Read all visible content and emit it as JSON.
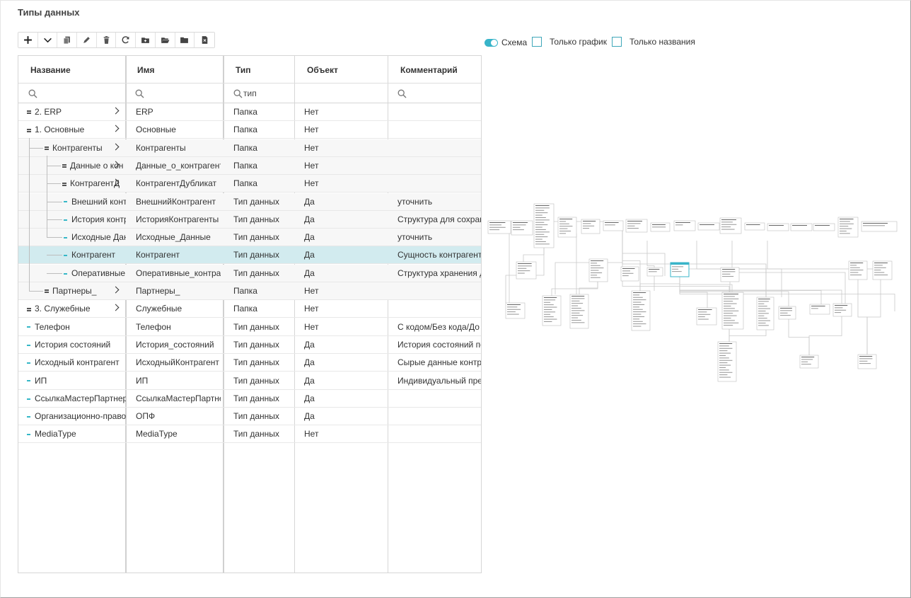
{
  "page": {
    "title": "Типы данных"
  },
  "toolbar": {
    "buttons": [
      {
        "name": "add-button",
        "icon": "plus-icon"
      },
      {
        "name": "dropdown-button",
        "icon": "chevron-down-icon"
      },
      {
        "name": "copy-button",
        "icon": "copy-icon"
      },
      {
        "name": "edit-button",
        "icon": "pencil-icon"
      },
      {
        "name": "delete-button",
        "icon": "trash-icon"
      },
      {
        "name": "refresh-button",
        "icon": "refresh-icon"
      },
      {
        "name": "add-folder-button",
        "icon": "folder-plus-icon"
      },
      {
        "name": "open-folder-button",
        "icon": "folder-open-icon"
      },
      {
        "name": "folder-button",
        "icon": "folder-icon"
      },
      {
        "name": "export-button",
        "icon": "file-export-icon"
      }
    ]
  },
  "view_options": {
    "schema_label": "Схема",
    "schema_on": true,
    "graph_only_label": "Только график",
    "graph_only_checked": false,
    "names_only_label": "Только названия",
    "names_only_checked": false
  },
  "grid": {
    "columns": [
      {
        "key": "name",
        "label": "Название"
      },
      {
        "key": "ident",
        "label": "Имя"
      },
      {
        "key": "type",
        "label": "Тип"
      },
      {
        "key": "object",
        "label": "Объект"
      },
      {
        "key": "comment",
        "label": "Комментарий"
      }
    ],
    "filters": {
      "name": "",
      "ident": "",
      "type": "тип",
      "comment": ""
    },
    "rows": [
      {
        "name": "2. ERP",
        "ident": "ERP",
        "type": "Папка",
        "object": "Нет",
        "comment": "",
        "kind": "folder",
        "level": 0,
        "expand": true
      },
      {
        "name": "1. Основные",
        "ident": "Основные",
        "type": "Папка",
        "object": "Нет",
        "comment": "",
        "kind": "folder",
        "level": 0,
        "expand": true
      },
      {
        "name": "Контрагенты",
        "ident": "Контрагенты",
        "type": "Папка",
        "object": "Нет",
        "comment": "",
        "kind": "folder",
        "level": 1,
        "expand": true
      },
      {
        "name": "Данные о кон",
        "ident": "Данные_о_контрагента",
        "type": "Папка",
        "object": "Нет",
        "comment": "",
        "kind": "folder",
        "level": 2,
        "expand": true
      },
      {
        "name": "КонтрагентД",
        "ident": "КонтрагентДубликат",
        "type": "Папка",
        "object": "Нет",
        "comment": "",
        "kind": "folder",
        "level": 2,
        "expand": true
      },
      {
        "name": "Внешний конт",
        "ident": "ВнешнийКонтрагент",
        "type": "Тип данных",
        "object": "Да",
        "comment": "уточнить",
        "kind": "type",
        "level": 2
      },
      {
        "name": "История контр",
        "ident": "ИсторияКонтрагенты",
        "type": "Тип данных",
        "object": "Да",
        "comment": "Структура для сохран",
        "kind": "type",
        "level": 2
      },
      {
        "name": "Исходные Дан",
        "ident": "Исходные_Данные",
        "type": "Тип данных",
        "object": "Да",
        "comment": "уточнить",
        "kind": "type",
        "level": 2
      },
      {
        "name": "Контрагент",
        "ident": "Контрагент",
        "type": "Тип данных",
        "object": "Да",
        "comment": "Сущность контрагент",
        "kind": "type",
        "level": 2,
        "selected": true
      },
      {
        "name": "Оперативные",
        "ident": "Оперативные_контраге",
        "type": "Тип данных",
        "object": "Да",
        "comment": "Структура хранения д",
        "kind": "type",
        "level": 2
      },
      {
        "name": "Партнеры_",
        "ident": "Партнеры_",
        "type": "Папка",
        "object": "Нет",
        "comment": "",
        "kind": "folder",
        "level": 1,
        "expand": true
      },
      {
        "name": "3. Служебные",
        "ident": "Служебные",
        "type": "Папка",
        "object": "Нет",
        "comment": "",
        "kind": "folder",
        "level": 0,
        "expand": true
      },
      {
        "name": "Телефон",
        "ident": "Телефон",
        "type": "Тип данных",
        "object": "Нет",
        "comment": "С кодом/Без кода/До",
        "kind": "type",
        "level": 0
      },
      {
        "name": "История состояний",
        "ident": "История_состояний",
        "type": "Тип данных",
        "object": "Да",
        "comment": "История состояний пе",
        "kind": "type",
        "level": 0
      },
      {
        "name": "Исходный контрагент",
        "ident": "ИсходныйКонтрагент",
        "type": "Тип данных",
        "object": "Да",
        "comment": "Сырые данные контр",
        "kind": "type",
        "level": 0
      },
      {
        "name": "ИП",
        "ident": "ИП",
        "type": "Тип данных",
        "object": "Да",
        "comment": "Индивидуальный пре",
        "kind": "type",
        "level": 0
      },
      {
        "name": "СсылкаМастерПартнер",
        "ident": "СсылкаМастерПартнер",
        "type": "Тип данных",
        "object": "Да",
        "comment": "",
        "kind": "type",
        "level": 0
      },
      {
        "name": "Организационно-правов",
        "ident": "ОПФ",
        "type": "Тип данных",
        "object": "Да",
        "comment": "",
        "kind": "type",
        "level": 0
      },
      {
        "name": "MediaType",
        "ident": "MediaType",
        "type": "Тип данных",
        "object": "Нет",
        "comment": "",
        "kind": "type",
        "level": 0
      }
    ]
  },
  "colors": {
    "accent": "#38b4c9",
    "selected_row": "#d2ebef"
  }
}
